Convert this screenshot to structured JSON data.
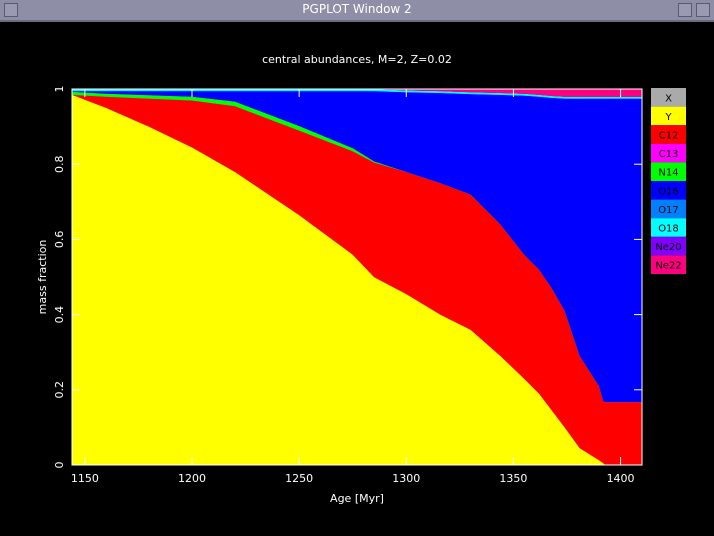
{
  "window": {
    "title": "PGPLOT Window 2"
  },
  "chart_data": {
    "type": "stacked_area",
    "title": "central abundances, M=2, Z=0.02",
    "x_label": "Age [Myr]",
    "y_label": "mass fraction",
    "x": [
      1144,
      1160,
      1180,
      1200,
      1220,
      1250,
      1275,
      1285,
      1300,
      1316,
      1330,
      1344,
      1355,
      1362,
      1368,
      1374,
      1381,
      1390,
      1392,
      1393,
      1410
    ],
    "xlim": [
      1144,
      1410
    ],
    "xticks": [
      1150,
      1200,
      1250,
      1300,
      1350,
      1400
    ],
    "ylim": [
      0,
      1
    ],
    "yticks": [
      0,
      0.2,
      0.4,
      0.6,
      0.8,
      1
    ],
    "legend": "right",
    "series": [
      {
        "name": "X",
        "color": "#aaaaaa",
        "values": [
          0,
          0,
          0,
          0,
          0,
          0,
          0,
          0,
          0,
          0,
          0,
          0,
          0,
          0,
          0,
          0,
          0,
          0,
          0,
          0,
          0
        ]
      },
      {
        "name": "Y",
        "color": "#ffff00",
        "values": [
          0.985,
          0.95,
          0.9,
          0.845,
          0.78,
          0.665,
          0.56,
          0.5,
          0.455,
          0.4,
          0.36,
          0.29,
          0.23,
          0.19,
          0.145,
          0.1,
          0.045,
          0.013,
          0.005,
          0,
          0
        ]
      },
      {
        "name": "C12",
        "color": "#ff0000",
        "values": [
          0,
          0.03,
          0.075,
          0.125,
          0.175,
          0.225,
          0.275,
          0.305,
          0.325,
          0.35,
          0.36,
          0.35,
          0.33,
          0.33,
          0.325,
          0.31,
          0.245,
          0.197,
          0.165,
          0.168,
          0.168
        ]
      },
      {
        "name": "C13",
        "color": "#ff00ff",
        "values": [
          0,
          0,
          0,
          0,
          0,
          0,
          0,
          0,
          0,
          0,
          0,
          0,
          0,
          0,
          0,
          0,
          0,
          0,
          0,
          0,
          0
        ]
      },
      {
        "name": "N14",
        "color": "#00ff00",
        "values": [
          0.008,
          0.008,
          0.009,
          0.01,
          0.012,
          0.012,
          0.008,
          0.003,
          0,
          0,
          0,
          0,
          0,
          0,
          0,
          0,
          0,
          0,
          0,
          0,
          0
        ]
      },
      {
        "name": "O16",
        "color": "#0000ff",
        "values": [
          0.002,
          0.007,
          0.011,
          0.015,
          0.028,
          0.093,
          0.152,
          0.187,
          0.212,
          0.24,
          0.267,
          0.345,
          0.423,
          0.46,
          0.507,
          0.565,
          0.685,
          0.765,
          0.805,
          0.807,
          0.807
        ]
      },
      {
        "name": "O17",
        "color": "#0080ff",
        "values": [
          0,
          0,
          0,
          0,
          0,
          0,
          0,
          0,
          0,
          0,
          0,
          0,
          0,
          0,
          0,
          0,
          0,
          0,
          0,
          0,
          0
        ]
      },
      {
        "name": "O18",
        "color": "#00ffff",
        "values": [
          0.005,
          0.005,
          0.005,
          0.005,
          0.005,
          0.005,
          0.005,
          0.005,
          0.005,
          0.005,
          0.005,
          0.005,
          0.005,
          0.005,
          0.005,
          0.005,
          0.005,
          0.005,
          0.005,
          0.005,
          0.005
        ]
      },
      {
        "name": "Ne20",
        "color": "#8000ff",
        "values": [
          0,
          0,
          0,
          0,
          0,
          0,
          0,
          0,
          0,
          0,
          0,
          0,
          0,
          0,
          0,
          0,
          0,
          0,
          0,
          0,
          0
        ]
      },
      {
        "name": "Ne22",
        "color": "#ff0080",
        "values": [
          0,
          0,
          0,
          0,
          0,
          0,
          0,
          0,
          0.003,
          0.005,
          0.008,
          0.01,
          0.012,
          0.015,
          0.018,
          0.02,
          0.02,
          0.02,
          0.02,
          0.02,
          0.02
        ]
      }
    ]
  }
}
